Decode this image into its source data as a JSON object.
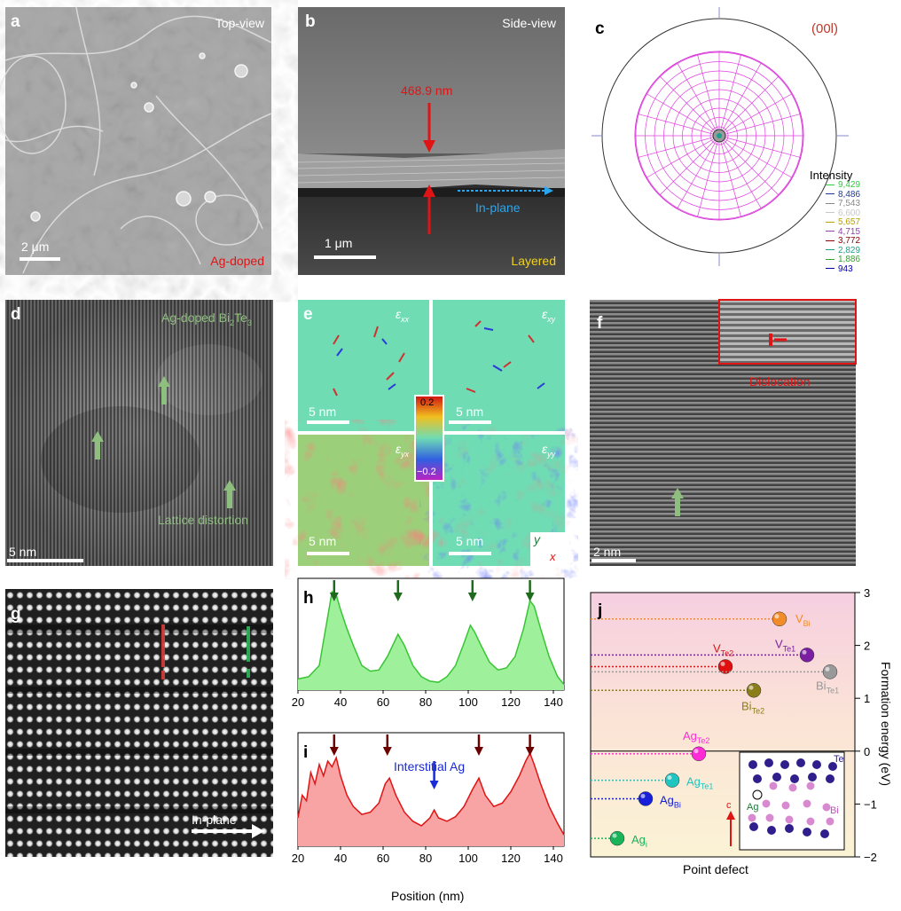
{
  "panels": {
    "a": {
      "label": "a",
      "view": "Top-view",
      "scale": "2 μm",
      "sample": "Ag-doped"
    },
    "b": {
      "label": "b",
      "view": "Side-view",
      "thickness": "468.9 nm",
      "direction": "In-plane",
      "scale": "1 μm",
      "structure": "Layered"
    },
    "c": {
      "label": "c",
      "plane": "(00l)",
      "intensity_title": "Intensity",
      "intensity_levels": [
        "9,429",
        "8,486",
        "7,543",
        "6,600",
        "5,657",
        "4,715",
        "3,772",
        "2,829",
        "1,886",
        "943"
      ],
      "level_colors": [
        "#2ecc40",
        "#1f3a93",
        "#888888",
        "#c8c8c8",
        "#b8a000",
        "#8e44ad",
        "#8b0000",
        "#1f9e89",
        "#33a02c",
        "#0000aa"
      ]
    },
    "d": {
      "label": "d",
      "title_main": "Ag-doped Bi",
      "title_sub": "2",
      "title_main2": "Te",
      "title_sub2": "3",
      "annotation": "Lattice distortion",
      "scale": "5 nm"
    },
    "e": {
      "label": "e",
      "q1": "xx",
      "q2": "xy",
      "q3": "yx",
      "q4": "yy",
      "scale": "5 nm",
      "cb_max": "0.2",
      "cb_min": "−0.2",
      "axis_y": "y",
      "axis_x": "x"
    },
    "f": {
      "label": "f",
      "inset": "Dislocation",
      "scale": "2 nm"
    },
    "g": {
      "label": "g",
      "direction": "In-plane"
    },
    "h": {
      "label": "h"
    },
    "i": {
      "label": "i",
      "annotation": "Interstitial Ag"
    },
    "j": {
      "label": "j",
      "ylabel": "Formation energy (eV)",
      "xlabel": "Point defect",
      "structure_labels": {
        "te": "Te",
        "ag": "Ag",
        "bi": "Bi",
        "c": "c"
      },
      "defects": [
        {
          "name": "V",
          "sub": "Bi",
          "energy": 2.5,
          "color": "#f28c28"
        },
        {
          "name": "V",
          "sub": "Te1",
          "energy": 1.82,
          "color": "#7b1fa2"
        },
        {
          "name": "V",
          "sub": "Te2",
          "energy": 1.6,
          "color": "#e01010"
        },
        {
          "name": "Bi",
          "sub": "Te1",
          "energy": 1.5,
          "color": "#999999"
        },
        {
          "name": "Bi",
          "sub": "Te2",
          "energy": 1.15,
          "color": "#8a7d1a"
        },
        {
          "name": "Ag",
          "sub": "Te2",
          "energy": -0.05,
          "color": "#ff2bd6"
        },
        {
          "name": "Ag",
          "sub": "Te1",
          "energy": -0.55,
          "color": "#20c5c0"
        },
        {
          "name": "Ag",
          "sub": "Bi",
          "energy": -0.9,
          "color": "#1520d8"
        },
        {
          "name": "Ag",
          "sub": "i",
          "energy": -1.65,
          "color": "#19b35a"
        }
      ]
    }
  },
  "chart_data": [
    {
      "type": "area",
      "panel": "h",
      "xlabel": "",
      "ylabel": "",
      "xlim": [
        20,
        145
      ],
      "x": [
        20,
        25,
        30,
        33,
        36,
        38,
        40,
        43,
        46,
        50,
        54,
        58,
        62,
        65,
        67,
        70,
        74,
        78,
        82,
        86,
        90,
        94,
        98,
        101,
        103,
        106,
        110,
        114,
        118,
        122,
        126,
        129,
        131,
        134,
        138,
        142,
        145
      ],
      "y": [
        0.1,
        0.12,
        0.22,
        0.55,
        0.88,
        0.85,
        0.72,
        0.55,
        0.4,
        0.22,
        0.17,
        0.18,
        0.3,
        0.42,
        0.5,
        0.4,
        0.22,
        0.12,
        0.08,
        0.07,
        0.12,
        0.22,
        0.42,
        0.58,
        0.52,
        0.4,
        0.25,
        0.18,
        0.2,
        0.3,
        0.55,
        0.8,
        0.75,
        0.55,
        0.3,
        0.12,
        0.05
      ],
      "x_ticks": [
        "20",
        "40",
        "60",
        "80",
        "100",
        "120",
        "140"
      ],
      "peak_arrows": [
        37,
        67,
        102,
        129
      ]
    },
    {
      "type": "area",
      "panel": "i",
      "xlabel": "Position (nm)",
      "ylabel": "",
      "xlim": [
        20,
        145
      ],
      "x": [
        20,
        22,
        24,
        26,
        28,
        30,
        32,
        34,
        36,
        38,
        40,
        43,
        46,
        50,
        54,
        58,
        61,
        63,
        66,
        70,
        74,
        78,
        82,
        84,
        86,
        90,
        94,
        98,
        102,
        105,
        108,
        112,
        116,
        120,
        124,
        127,
        129,
        131,
        134,
        138,
        142,
        145
      ],
      "y": [
        0.25,
        0.45,
        0.4,
        0.65,
        0.55,
        0.72,
        0.62,
        0.75,
        0.7,
        0.78,
        0.62,
        0.45,
        0.35,
        0.28,
        0.3,
        0.38,
        0.55,
        0.6,
        0.45,
        0.3,
        0.22,
        0.18,
        0.25,
        0.32,
        0.25,
        0.22,
        0.26,
        0.35,
        0.5,
        0.6,
        0.45,
        0.35,
        0.38,
        0.48,
        0.62,
        0.75,
        0.82,
        0.72,
        0.55,
        0.35,
        0.2,
        0.1
      ],
      "x_ticks": [
        "20",
        "40",
        "60",
        "80",
        "100",
        "120",
        "140"
      ],
      "peak_arrows": [
        37,
        62,
        105,
        129
      ],
      "interstitial_arrow": 84
    },
    {
      "type": "scatter",
      "panel": "j",
      "ylabel": "Formation energy (eV)",
      "xlabel": "Point defect",
      "ylim": [
        -2,
        3
      ],
      "y_ticks": [
        "3",
        "2",
        "1",
        "0",
        "−1",
        "−2"
      ],
      "series": [
        {
          "name": "Point defect",
          "values": [
            2.5,
            1.82,
            1.6,
            1.5,
            1.15,
            -0.05,
            -0.55,
            -0.9,
            -1.65
          ]
        }
      ]
    }
  ]
}
